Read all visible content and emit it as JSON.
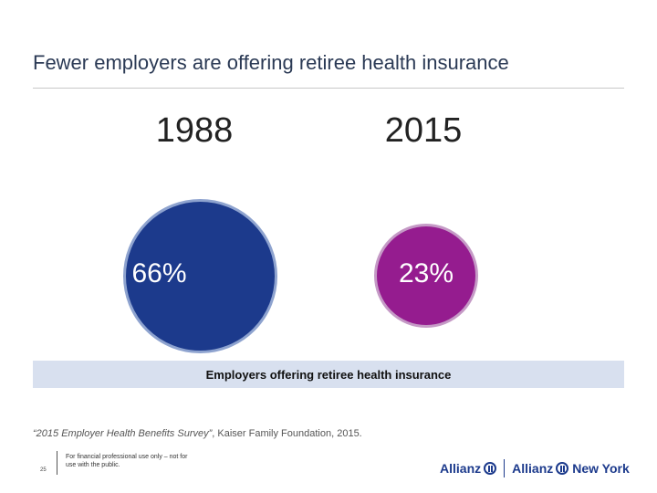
{
  "slide": {
    "title": "Fewer employers are offering retiree health insurance",
    "band_label": "Employers offering retiree health insurance",
    "source_title": "“2015 Employer Health Benefits Survey”",
    "source_rest": ", Kaiser Family Foundation, 2015.",
    "page_number": "25",
    "disclaimer": "For financial professional use only – not for use with the public.",
    "logo_left": "Allianz",
    "logo_right": "Allianz",
    "logo_right_suffix": "New York"
  },
  "chart_data": {
    "type": "bubble",
    "title": "Employers offering retiree health insurance",
    "categories": [
      "1988",
      "2015"
    ],
    "values": [
      66,
      23
    ],
    "labels": [
      "66%",
      "23%"
    ],
    "unit": "%",
    "colors": [
      "#1c3a8c",
      "#951c8f"
    ]
  }
}
